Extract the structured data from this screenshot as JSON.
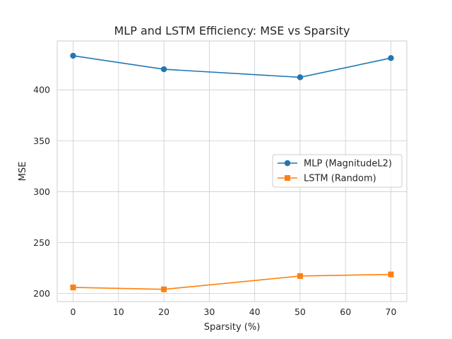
{
  "chart_data": {
    "type": "line",
    "title": "MLP and LSTM Efficiency: MSE vs Sparsity",
    "xlabel": "Sparsity (%)",
    "ylabel": "MSE",
    "xlim": [
      -3.5,
      73.5
    ],
    "ylim": [
      192,
      448
    ],
    "xticks": [
      0,
      10,
      20,
      30,
      40,
      50,
      60,
      70
    ],
    "yticks": [
      200,
      250,
      300,
      350,
      400
    ],
    "x": [
      0,
      20,
      50,
      70
    ],
    "grid": true,
    "legend_position": "center-right",
    "series": [
      {
        "name": "MLP (MagnitudeL2)",
        "marker": "circle",
        "color": "#1f77b4",
        "values": [
          433.5,
          420.2,
          412.3,
          431.2
        ]
      },
      {
        "name": "LSTM (Random)",
        "marker": "square",
        "color": "#ff7f0e",
        "values": [
          205.9,
          204.0,
          217.1,
          218.7
        ]
      }
    ]
  }
}
